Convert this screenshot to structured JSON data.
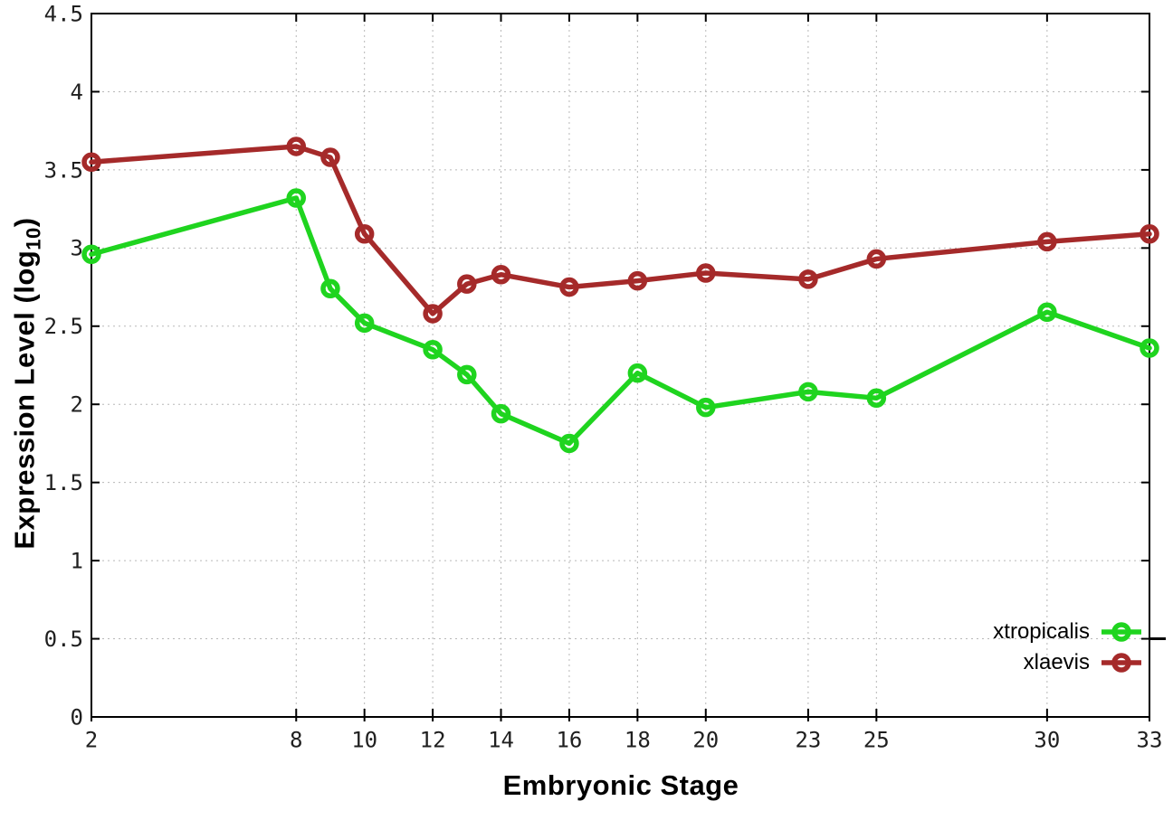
{
  "chart_data": {
    "type": "line",
    "title": "",
    "xlabel": "Embryonic Stage",
    "ylabel": "Expression Level (log10)",
    "ylabel_parts": {
      "pre": "Expression Level (log",
      "sub": "10",
      "post": ")"
    },
    "xlim": [
      2,
      33
    ],
    "ylim": [
      0,
      4.5
    ],
    "grid": true,
    "grid_style": "dotted",
    "legend_position": "inside-bottom-right",
    "x": [
      2,
      8,
      9,
      10,
      12,
      13,
      14,
      16,
      18,
      20,
      23,
      25,
      30,
      33
    ],
    "xtick_values": [
      2,
      8,
      10,
      12,
      14,
      16,
      18,
      20,
      23,
      25,
      30,
      33
    ],
    "xtick_labels": [
      "2",
      "8",
      "10",
      "12",
      "14",
      "16",
      "18",
      "20",
      "23",
      "25",
      "30",
      "33"
    ],
    "ytick_values": [
      0,
      0.5,
      1,
      1.5,
      2,
      2.5,
      3,
      3.5,
      4,
      4.5
    ],
    "ytick_labels": [
      "0",
      "0.5",
      "1",
      "1.5",
      "2",
      "2.5",
      "3",
      "3.5",
      "4",
      "4.5"
    ],
    "series": [
      {
        "name": "xtropicalis",
        "color": "#1fd41f",
        "marker": "open-circle",
        "values": [
          2.96,
          3.32,
          2.74,
          2.52,
          2.35,
          2.19,
          1.94,
          1.75,
          2.2,
          1.98,
          2.08,
          2.04,
          2.59,
          2.36
        ]
      },
      {
        "name": "xlaevis",
        "color": "#a52a2a",
        "marker": "open-circle",
        "values": [
          3.55,
          3.65,
          3.58,
          3.09,
          2.58,
          2.77,
          2.83,
          2.75,
          2.79,
          2.84,
          2.8,
          2.93,
          3.04,
          3.09
        ]
      }
    ]
  },
  "colors": {
    "background": "#ffffff",
    "plot_border": "#000000",
    "grid": "#b8b8b8",
    "tick_text": "#1f1f1f",
    "axis_title_text": "#000000"
  }
}
